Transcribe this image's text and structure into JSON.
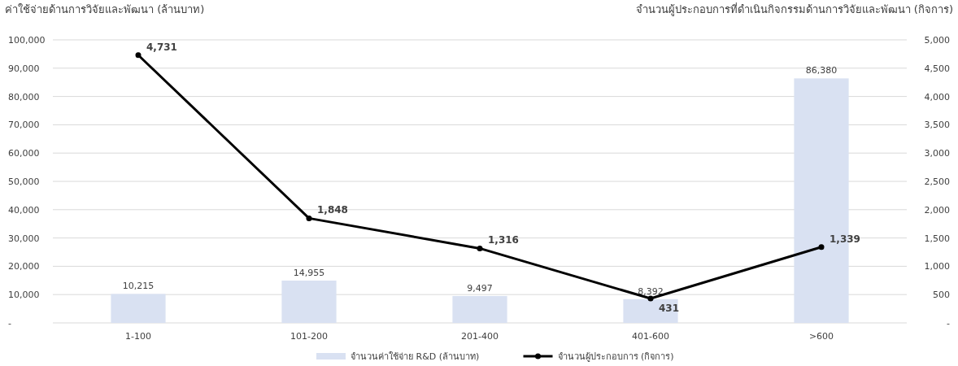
{
  "chart_data": {
    "type": "bar",
    "ylabel": "ค่าใช้จ่ายด้านการวิจัยและพัฒนา  (ล้านบาท)",
    "y2label": "จำนวนผู้ประกอบการที่ดำเนินกิจกรรมด้านการวิจัยและพัฒนา (กิจการ)",
    "categories": [
      "1-100",
      "101-200",
      "201-400",
      "401-600",
      ">600"
    ],
    "series": [
      {
        "name": "จำนวนค่าใช้จ่าย R&D (ล้านบาท)",
        "color": "#d9e1f2",
        "values": [
          10215,
          14955,
          9497,
          8392,
          86380
        ],
        "value_labels": [
          "10,215",
          "14,955",
          "9,497",
          "8,392",
          "86,380"
        ]
      },
      {
        "name": "จำนวนผู้ประกอบการ (กิจการ)",
        "type": "line",
        "axis": "y2",
        "color": "#000000",
        "marker": "circle",
        "values": [
          4731,
          1848,
          1316,
          431,
          1339
        ],
        "value_labels": [
          "4,731",
          "1,848",
          "1,316",
          "431",
          "1,339"
        ]
      }
    ],
    "grid": "y",
    "legend": "bottom",
    "ylim": [
      0,
      100000
    ],
    "yticks": [
      {
        "value": 0,
        "label": "-"
      },
      {
        "value": 10000,
        "label": "10,000"
      },
      {
        "value": 20000,
        "label": "20,000"
      },
      {
        "value": 30000,
        "label": "30,000"
      },
      {
        "value": 40000,
        "label": "40,000"
      },
      {
        "value": 50000,
        "label": "50,000"
      },
      {
        "value": 60000,
        "label": "60,000"
      },
      {
        "value": 70000,
        "label": "70,000"
      },
      {
        "value": 80000,
        "label": "80,000"
      },
      {
        "value": 90000,
        "label": "90,000"
      },
      {
        "value": 100000,
        "label": "100,000"
      }
    ],
    "y2lim": [
      0,
      5000
    ],
    "y2ticks": [
      {
        "value": 0,
        "label": "-"
      },
      {
        "value": 500,
        "label": "500"
      },
      {
        "value": 1000,
        "label": "1,000"
      },
      {
        "value": 1500,
        "label": "1,500"
      },
      {
        "value": 2000,
        "label": "2,000"
      },
      {
        "value": 2500,
        "label": "2,500"
      },
      {
        "value": 3000,
        "label": "3,000"
      },
      {
        "value": 3500,
        "label": "3,500"
      },
      {
        "value": 4000,
        "label": "4,000"
      },
      {
        "value": 4500,
        "label": "4,500"
      },
      {
        "value": 5000,
        "label": "5,000"
      }
    ]
  }
}
